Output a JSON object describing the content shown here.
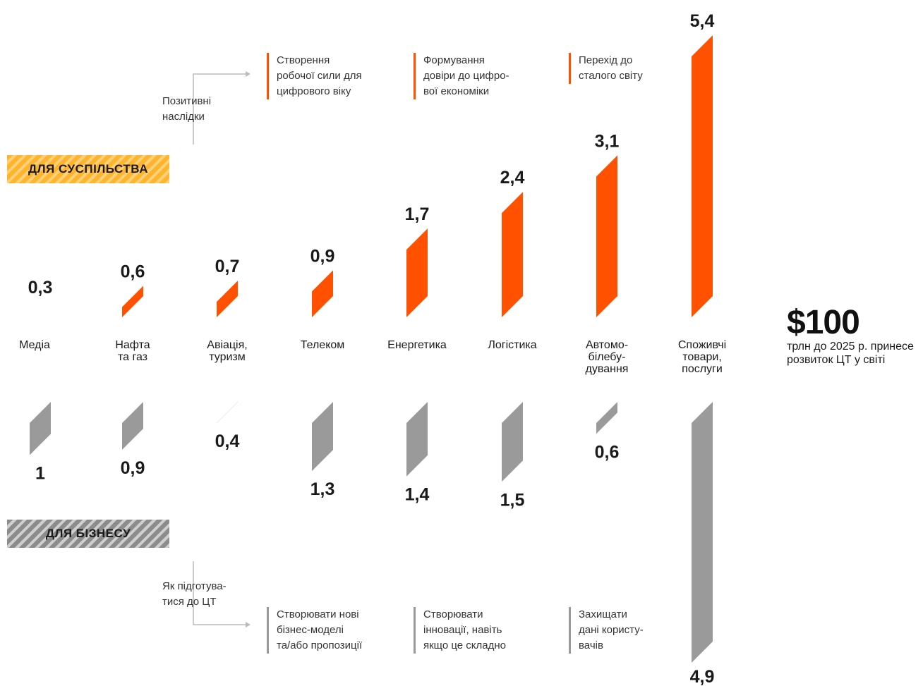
{
  "chart_data": {
    "type": "bar",
    "categories": [
      "Медіа",
      "Нафта\nта газ",
      "Авіація,\nтуризм",
      "Телеком",
      "Енергетика",
      "Логістика",
      "Автомо-\nбілебу-\nдування",
      "Споживчі\nтовари,\nпослуги"
    ],
    "series": [
      {
        "name": "Для суспільства",
        "values": [
          0.3,
          0.6,
          0.7,
          0.9,
          1.7,
          2.4,
          3.1,
          5.4
        ],
        "labels": [
          "0,3",
          "0,6",
          "0,7",
          "0,9",
          "1,7",
          "2,4",
          "3,1",
          "5,4"
        ],
        "color": "#ff5100"
      },
      {
        "name": "Для бізнесу",
        "values": [
          1,
          0.9,
          0.4,
          1.3,
          1.4,
          1.5,
          0.6,
          4.9
        ],
        "labels": [
          "1",
          "0,9",
          "0,4",
          "1,3",
          "1,4",
          "1,5",
          "0,6",
          "4,9"
        ],
        "color": "#9a9a9a"
      }
    ],
    "total": {
      "value": "$100",
      "label": "трлн до 2025 р. принесе розвиток ЦТ у світі"
    }
  },
  "bands": {
    "society": "ДЛЯ СУСПІЛЬСТВА",
    "business": "ДЛЯ БІЗНЕСУ"
  },
  "positive": {
    "label": "Позитивні\nнаслідки",
    "items": [
      "Створення\nробочої сили для\nцифрового віку",
      "Формування\nдовіри до цифро-\nвої економіки",
      "Перехід до\nсталого світу"
    ]
  },
  "prepare": {
    "label": "Як підготува-\nтися до ЦТ",
    "items": [
      "Створювати нові\nбізнес-моделі\nта/або пропозиції",
      "Створювати\nінновації, навіть\nякщо це складно",
      "Захищати\nдані користу-\nвачів"
    ]
  }
}
